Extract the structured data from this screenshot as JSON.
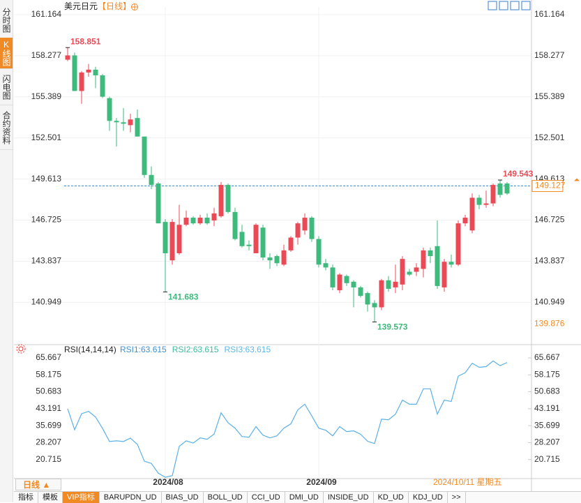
{
  "sidebar_tabs": [
    "分时图",
    "K线图",
    "闪电图",
    "合约资料"
  ],
  "chart_data": [
    {
      "type": "candlestick",
      "title": "美元日元",
      "period": "【日线】",
      "categories": [
        null,
        null,
        null,
        null,
        null,
        null,
        null,
        null,
        null,
        null,
        null,
        null,
        null,
        null,
        "2024/08",
        null,
        null,
        null,
        null,
        null,
        null,
        null,
        null,
        null,
        null,
        null,
        null,
        null,
        null,
        null,
        null,
        null,
        null,
        null,
        null,
        null,
        "2024/09",
        null,
        null,
        null,
        null,
        null,
        null,
        null,
        null,
        null,
        null,
        null,
        null,
        null,
        null,
        null,
        null,
        null,
        null,
        null,
        null,
        null,
        null,
        null,
        null,
        null,
        null,
        null
      ],
      "open": [
        158.0,
        158.3,
        155.8,
        157.1,
        157.3,
        156.9,
        155.3,
        153.7,
        153.6,
        153.4,
        153.9,
        152.6,
        149.9,
        149.3,
        146.6,
        143.9,
        144.4,
        146.4,
        146.9,
        146.5,
        146.9,
        146.7,
        147.0,
        149.2,
        147.3,
        145.9,
        145.0,
        144.4,
        146.2,
        144.1,
        144.2,
        143.6,
        144.6,
        145.5,
        146.0,
        146.9,
        145.4,
        143.7,
        143.4,
        141.8,
        142.8,
        142.4,
        142.0,
        141.6,
        140.9,
        140.6,
        142.5,
        142.0,
        142.2,
        143.1,
        143.1,
        143.3,
        144.6,
        144.9,
        142.0,
        143.8,
        143.6,
        146.5,
        146.0,
        148.3,
        147.8,
        147.9,
        149.3,
        149.3
      ],
      "high": [
        158.851,
        158.5,
        157.2,
        157.7,
        157.5,
        157.0,
        155.4,
        153.9,
        154.6,
        154.2,
        154.5,
        152.6,
        150.5,
        149.4,
        146.8,
        146.8,
        147.8,
        147.4,
        147.0,
        147.1,
        147.2,
        147.6,
        149.4,
        149.3,
        147.6,
        146.4,
        145.3,
        146.5,
        146.4,
        144.4,
        144.3,
        145.0,
        145.6,
        146.6,
        147.2,
        147.0,
        145.6,
        144.0,
        143.6,
        143.0,
        142.9,
        142.5,
        142.1,
        141.7,
        141.1,
        142.6,
        142.8,
        143.6,
        144.2,
        143.3,
        143.7,
        144.8,
        144.8,
        146.7,
        144.0,
        144.3,
        146.7,
        147.1,
        148.6,
        148.5,
        148.8,
        149.3,
        149.543,
        149.4
      ],
      "low": [
        157.9,
        155.8,
        154.9,
        156.8,
        156.0,
        155.3,
        153.0,
        151.9,
        153.0,
        152.9,
        152.6,
        149.7,
        148.9,
        146.5,
        141.683,
        143.6,
        144.3,
        146.3,
        146.4,
        146.4,
        146.4,
        146.3,
        146.9,
        147.2,
        145.3,
        144.8,
        144.6,
        144.4,
        143.9,
        143.3,
        143.5,
        143.5,
        144.5,
        145.0,
        145.7,
        145.2,
        143.4,
        143.2,
        141.8,
        141.6,
        142.1,
        140.6,
        141.3,
        140.3,
        139.573,
        140.4,
        141.7,
        141.6,
        141.8,
        142.8,
        142.8,
        142.7,
        143.7,
        141.9,
        141.7,
        143.4,
        143.5,
        146.3,
        145.8,
        147.5,
        147.6,
        147.7,
        148.3,
        148.5
      ],
      "close": [
        158.3,
        155.8,
        157.1,
        157.3,
        156.9,
        155.4,
        153.7,
        153.6,
        153.5,
        153.8,
        152.6,
        149.9,
        149.2,
        146.5,
        144.4,
        146.6,
        146.4,
        146.9,
        146.5,
        146.9,
        146.5,
        147.2,
        149.2,
        147.3,
        145.4,
        144.9,
        144.9,
        146.4,
        144.1,
        143.9,
        143.7,
        144.6,
        145.5,
        146.5,
        146.9,
        145.4,
        143.6,
        143.4,
        142.0,
        142.9,
        142.3,
        142.0,
        141.4,
        140.8,
        140.6,
        142.5,
        141.9,
        142.4,
        144.0,
        142.9,
        143.4,
        144.6,
        144.2,
        142.1,
        143.8,
        143.6,
        146.5,
        146.9,
        148.3,
        147.8,
        147.9,
        149.2,
        148.5,
        148.6
      ],
      "up_color": "#ea4a55",
      "down_color": "#3dba7c",
      "ylim": [
        138.174,
        161.703
      ],
      "yticks": [
        140.949,
        143.837,
        146.725,
        149.613,
        152.501,
        155.389,
        158.277,
        161.164
      ],
      "grid": true,
      "last_price": 149.127,
      "marker_price": 139.876,
      "cursor_date": "2024/10/11 星期五"
    },
    {
      "type": "line",
      "title": "RSI(14,14,14)",
      "legend": [
        "RSI1:63.615",
        "RSI2:63.615",
        "RSI3:63.615"
      ],
      "legend_colors": [
        "#3c8fd6",
        "#3dba9c",
        "#5ab8e6"
      ],
      "series": [
        {
          "color": "#5ab0e6",
          "values": [
            43.2,
            33.9,
            41,
            42,
            39.5,
            34.5,
            28.7,
            29,
            28.7,
            30.2,
            27.4,
            20,
            19,
            14.7,
            12.9,
            13.6,
            26.6,
            29,
            28,
            30.3,
            29.7,
            32,
            41.4,
            37,
            34.6,
            30.9,
            30.6,
            35.3,
            31.5,
            30.3,
            31.2,
            34.6,
            36.5,
            42.7,
            45.2,
            40,
            34.6,
            33.7,
            31.2,
            35.3,
            33.1,
            33.4,
            31.9,
            28.8,
            27.8,
            38.6,
            38.3,
            40.8,
            47,
            45.2,
            45.2,
            52,
            52,
            40.8,
            47,
            46.4,
            57.6,
            59.1,
            63.3,
            61.5,
            61.8,
            64.3,
            62.2,
            63.615
          ]
        }
      ],
      "ylim": [
        12,
        68.13
      ],
      "yticks": [
        20.715,
        28.207,
        35.699,
        43.191,
        50.683,
        58.175,
        65.667
      ],
      "grid": false
    }
  ],
  "period_selector": "日线 ▲",
  "toolbar": [
    "指标",
    "模板",
    "VIP指标",
    "BARUPDN_UD",
    "BIAS_UD",
    "BOLL_UD",
    "CCI_UD",
    "DMI_UD",
    "INSIDE_UD",
    "KD_UD",
    "KDJ_UD",
    ">>"
  ]
}
